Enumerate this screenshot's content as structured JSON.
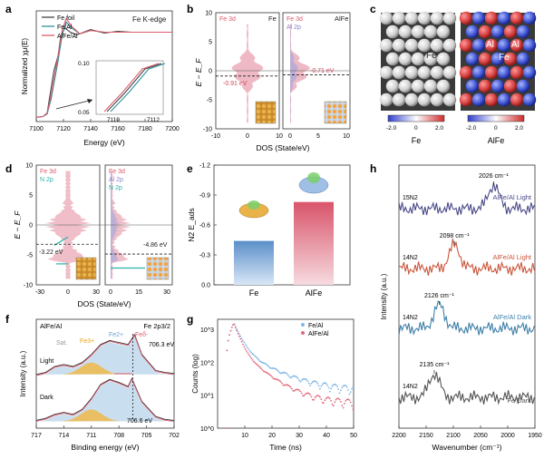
{
  "panel_letters": [
    "a",
    "b",
    "c",
    "d",
    "e",
    "f",
    "g",
    "h"
  ],
  "colors": {
    "fe_foil": "#444444",
    "fe_al": "#2f8f9d",
    "alfe_al": "#e05a6b",
    "fe3d_fill": "#e8a2b0",
    "al2p_fill": "#a9a9d9",
    "n2p_fill": "#28b2a8",
    "bar_fe": "#5b8fc9",
    "bar_alfe": "#d9546a",
    "raman_15n2": "#4a4a8a",
    "raman_14n2_light": "#c9553a",
    "raman_14n2_dark": "#3e7fa8",
    "raman_fe_dark": "#555555",
    "pl_fe": "#7fb6e6",
    "pl_alfe": "#e36b7d"
  },
  "chart_data": [
    {
      "panel": "a",
      "type": "line",
      "title": "Fe K-edge",
      "xlabel": "Energy (eV)",
      "ylabel": "Normalized χμ(E)",
      "xlim": [
        7100,
        7200
      ],
      "xticks": [
        "7100",
        "7120",
        "7140",
        "7160",
        "7180",
        "7200"
      ],
      "legend": [
        "Fe foil",
        "Fe/Al",
        "AlFe/Al"
      ],
      "inset": {
        "xticks": [
          "7110",
          "7112"
        ],
        "yticks": [
          "0.10",
          "0.05"
        ]
      },
      "series": [
        {
          "name": "Fe foil",
          "x": [
            7100,
            7105,
            7108,
            7111,
            7113,
            7116,
            7118,
            7121,
            7125,
            7130,
            7140,
            7150,
            7160,
            7170,
            7180,
            7190,
            7200
          ],
          "y": [
            0.0,
            0.01,
            0.05,
            0.35,
            0.55,
            0.72,
            0.95,
            1.05,
            1.0,
            0.97,
            1.03,
            0.99,
            1.01,
            1.0,
            1.0,
            1.0,
            1.0
          ]
        },
        {
          "name": "Fe/Al",
          "x": [
            7100,
            7105,
            7108,
            7111,
            7113,
            7116,
            7119,
            7122,
            7126,
            7132,
            7140,
            7150,
            7160,
            7170,
            7180,
            7190,
            7200
          ],
          "y": [
            0.0,
            0.01,
            0.04,
            0.22,
            0.4,
            0.66,
            0.96,
            1.12,
            1.05,
            0.98,
            1.02,
            1.0,
            1.0,
            1.0,
            1.0,
            1.0,
            1.0
          ]
        },
        {
          "name": "AlFe/Al",
          "x": [
            7100,
            7105,
            7108,
            7111,
            7113,
            7116,
            7119,
            7122,
            7126,
            7132,
            7140,
            7150,
            7160,
            7170,
            7180,
            7190,
            7200
          ],
          "y": [
            0.0,
            0.01,
            0.05,
            0.26,
            0.45,
            0.72,
            1.02,
            1.16,
            1.07,
            0.98,
            1.02,
            1.0,
            1.0,
            1.0,
            1.0,
            1.0,
            1.0
          ]
        }
      ]
    },
    {
      "panel": "b",
      "type": "area",
      "ylabel": "E − E_F",
      "xlabel": "DOS (State/eV)",
      "ylim": [
        -10,
        10
      ],
      "yticks": [
        "10",
        "5",
        "0",
        "-5",
        "-10"
      ],
      "subplots": [
        {
          "label": "Fe",
          "legend": [
            "Fe 3d"
          ],
          "xticks": [
            "-10",
            "0",
            "10"
          ],
          "dband_center": "-0.91 eV"
        },
        {
          "label": "AlFe",
          "legend": [
            "Fe 3d",
            "Al 2p"
          ],
          "xticks": [
            "0",
            "5",
            "10"
          ],
          "dband_center": "-0.71 eV"
        }
      ]
    },
    {
      "panel": "c",
      "type": "heatmap",
      "panels": [
        {
          "name": "Fe",
          "atom_labels": [
            "Fe"
          ],
          "colorbar_ticks": [
            "-2.0",
            "0",
            "2.0"
          ]
        },
        {
          "name": "AlFe",
          "atom_labels": [
            "Al",
            "Al",
            "Fe"
          ],
          "colorbar_ticks": [
            "-2.0",
            "0",
            "2.0"
          ]
        }
      ]
    },
    {
      "panel": "d",
      "type": "area",
      "ylabel": "E − E_F",
      "xlabel": "DOS (State/eV)",
      "ylim": [
        -10,
        10
      ],
      "yticks": [
        "10",
        "5",
        "0",
        "-5",
        "-10"
      ],
      "subplots": [
        {
          "legend": [
            "Fe 3d",
            "N 2p"
          ],
          "xticks": [
            "-30",
            "0",
            "30"
          ],
          "dband_center": "-3.22 eV"
        },
        {
          "legend": [
            "Fe 3d",
            "Al 2p",
            "N 2p"
          ],
          "xticks": [
            "0",
            "15",
            "30"
          ],
          "dband_center": "-4.86 eV"
        }
      ]
    },
    {
      "panel": "e",
      "type": "bar",
      "categories": [
        "Fe",
        "AlFe"
      ],
      "values": [
        -0.44,
        -0.83
      ],
      "ylabel": "N2 E_ads",
      "ylim": [
        -1.2,
        0
      ],
      "yticks": [
        "-1.2",
        "-0.9",
        "-0.6",
        "-0.3",
        "0.0"
      ]
    },
    {
      "panel": "f",
      "type": "line",
      "title": "AlFe/Al",
      "region": "Fe 2p3/2",
      "xlabel": "Binding energy (eV)",
      "ylabel": "Intensity (a.u.)",
      "xlim": [
        717,
        702
      ],
      "xticks": [
        "717",
        "714",
        "711",
        "708",
        "705",
        "702"
      ],
      "peak_labels": [
        "Sat.",
        "Fe3+",
        "Fe2+",
        "Feδ-"
      ],
      "series": [
        {
          "name": "Light",
          "peak": "706.3 eV",
          "x": [
            717,
            716,
            715,
            714,
            713,
            712,
            711,
            710,
            709,
            708,
            707,
            706.3,
            705.5,
            704,
            703,
            702
          ],
          "y": [
            0.52,
            0.54,
            0.6,
            0.62,
            0.6,
            0.64,
            0.72,
            0.82,
            0.86,
            0.84,
            0.82,
            0.92,
            0.72,
            0.56,
            0.54,
            0.53
          ]
        },
        {
          "name": "Dark",
          "peak": "706.6 eV",
          "x": [
            717,
            716,
            715,
            714,
            713,
            712,
            711,
            710,
            709,
            708,
            707,
            706.6,
            705.5,
            704,
            703,
            702
          ],
          "y": [
            0.06,
            0.08,
            0.12,
            0.14,
            0.12,
            0.17,
            0.28,
            0.42,
            0.47,
            0.44,
            0.4,
            0.48,
            0.25,
            0.1,
            0.07,
            0.06
          ]
        }
      ]
    },
    {
      "panel": "g",
      "type": "scatter",
      "xlabel": "Time (ns)",
      "ylabel": "Counts (log)",
      "xlim": [
        0,
        50
      ],
      "ylim": [
        1,
        1000
      ],
      "log_y": true,
      "xticks": [
        "10",
        "20",
        "30",
        "40",
        "50"
      ],
      "yticks": [
        "10^3",
        "10^2",
        "10^1",
        "10^0"
      ],
      "series": [
        {
          "name": "Fe/Al",
          "tau1": 2.2,
          "tau2": 9.5,
          "floor": 12
        },
        {
          "name": "AlFe/Al",
          "tau1": 1.8,
          "tau2": 7.0,
          "floor": 5
        }
      ]
    },
    {
      "panel": "h",
      "type": "line",
      "xlabel": "Wavenumber (cm⁻¹)",
      "ylabel": "Intensity (a.u.)",
      "xlim": [
        2200,
        1950
      ],
      "xticks": [
        "2200",
        "2150",
        "2100",
        "2050",
        "2000",
        "1950"
      ],
      "series": [
        {
          "name": "15N2 AlFe/Al Light",
          "isotope": "15N2",
          "label": "AlFe/Al Light",
          "peak": "2026 cm⁻¹",
          "peak_x": 2026
        },
        {
          "name": "14N2 AlFe/Al Light",
          "isotope": "14N2",
          "label": "AlFe/Al Light",
          "peak": "2098 cm⁻¹",
          "peak_x": 2098
        },
        {
          "name": "14N2 AlFe/Al Dark",
          "isotope": "14N2",
          "label": "AlFe/Al Dark",
          "peak": "2126 cm⁻¹",
          "peak_x": 2126
        },
        {
          "name": "14N2 Fe Dark",
          "isotope": "14N2",
          "label": "Fe Dark",
          "peak": "2135 cm⁻¹",
          "peak_x": 2135
        }
      ]
    }
  ]
}
